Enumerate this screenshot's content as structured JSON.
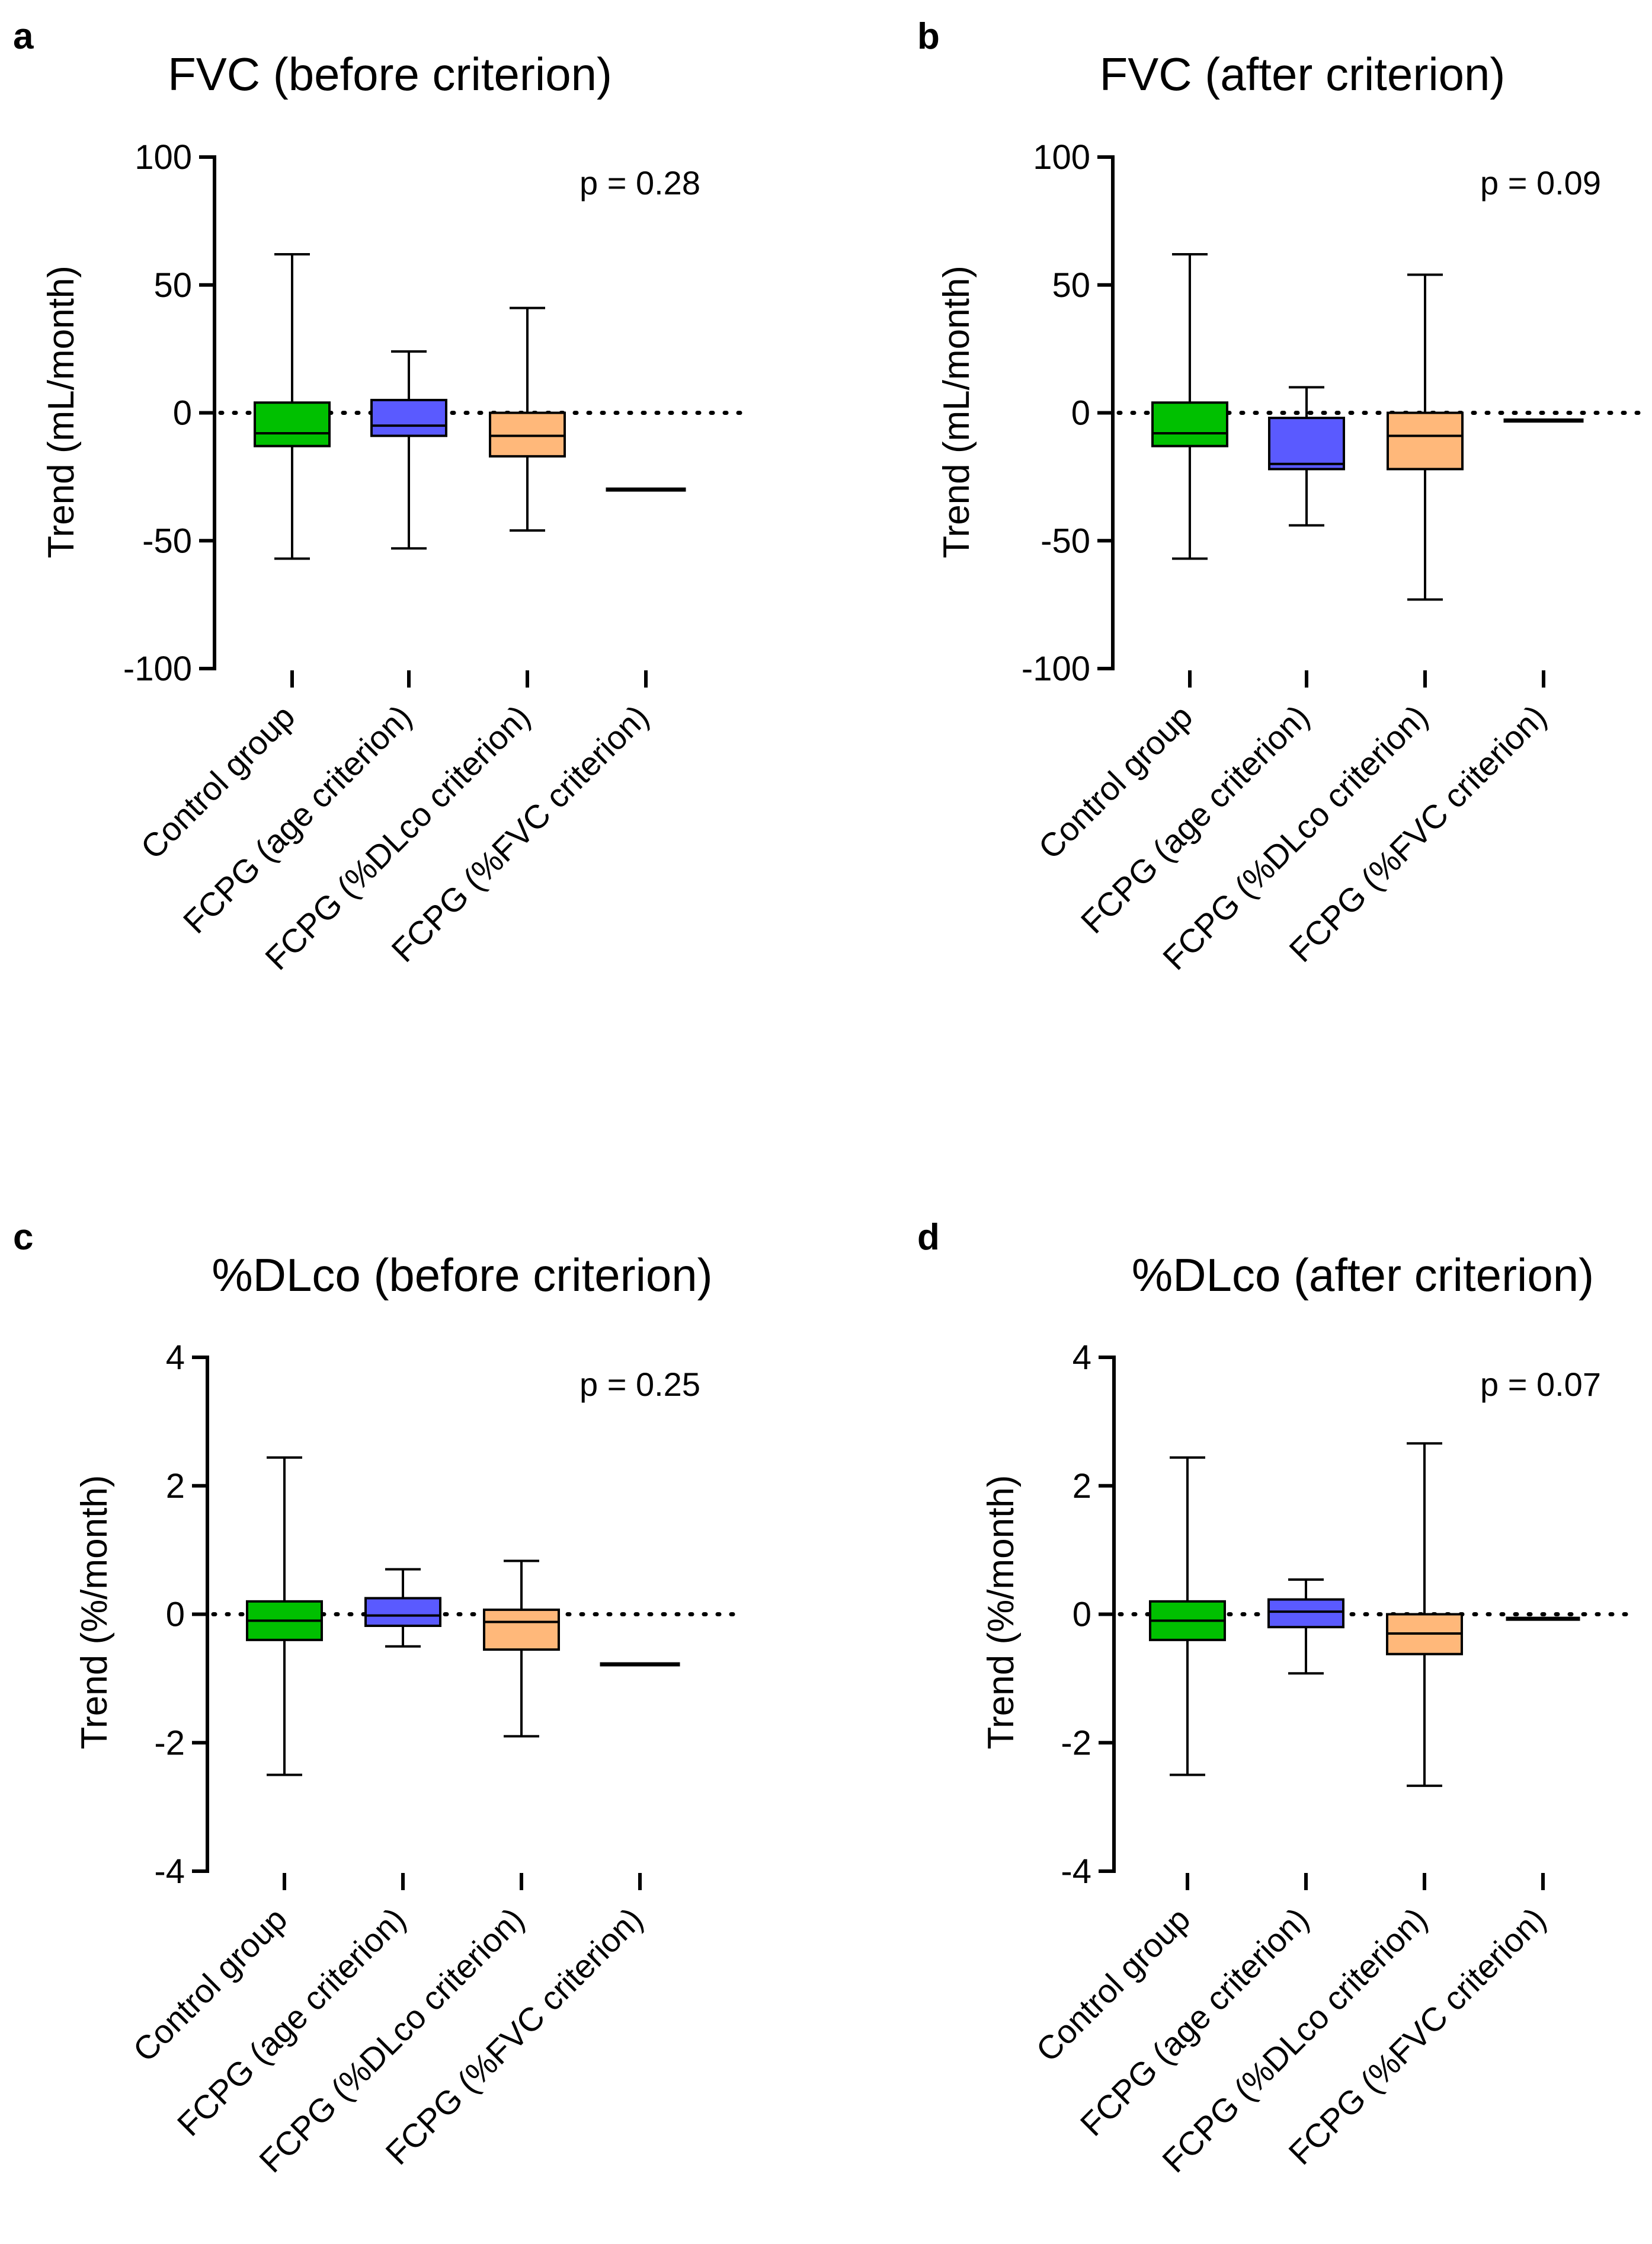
{
  "chart_data": [
    {
      "panel": "a",
      "type": "box",
      "title": "FVC (before criterion)",
      "ylabel": "Trend (mL/month)",
      "xlabel": "",
      "ylim": [
        -100,
        100
      ],
      "yticks": [
        100,
        50,
        0,
        -50,
        -100
      ],
      "reference_line": 0,
      "annotation": "p = 0.28",
      "categories": [
        "Control group",
        "FCPG (age criterion)",
        "FCPG (%DLco criterion)",
        "FCPG (%FVC criterion)"
      ],
      "colors": [
        "#00c000",
        "#5a5aff",
        "#ffb87a",
        "#000000"
      ],
      "boxes": [
        {
          "min": -57,
          "q1": -13,
          "median": -8,
          "q3": 4,
          "max": 62
        },
        {
          "min": -53,
          "q1": -9,
          "median": -5,
          "q3": 5,
          "max": 24
        },
        {
          "min": -46,
          "q1": -17,
          "median": -9,
          "q3": 0,
          "max": 41
        },
        {
          "min": -30,
          "q1": -30,
          "median": -30,
          "q3": -30,
          "max": -30
        }
      ]
    },
    {
      "panel": "b",
      "type": "box",
      "title": "FVC (after criterion)",
      "ylabel": "Trend (mL/month)",
      "xlabel": "",
      "ylim": [
        -100,
        100
      ],
      "yticks": [
        100,
        50,
        0,
        -50,
        -100
      ],
      "reference_line": 0,
      "annotation": "p = 0.09",
      "categories": [
        "Control group",
        "FCPG (age criterion)",
        "FCPG (%DLco criterion)",
        "FCPG (%FVC criterion)"
      ],
      "colors": [
        "#00c000",
        "#5a5aff",
        "#ffb87a",
        "#000000"
      ],
      "boxes": [
        {
          "min": -57,
          "q1": -13,
          "median": -8,
          "q3": 4,
          "max": 62
        },
        {
          "min": -44,
          "q1": -22,
          "median": -20,
          "q3": -2,
          "max": 10
        },
        {
          "min": -73,
          "q1": -22,
          "median": -9,
          "q3": 0,
          "max": 54
        },
        {
          "min": -3,
          "q1": -3,
          "median": -3,
          "q3": -3,
          "max": -3
        }
      ]
    },
    {
      "panel": "c",
      "type": "box",
      "title": "%DLco (before criterion)",
      "ylabel": "Trend (%/month)",
      "xlabel": "",
      "ylim": [
        -4,
        4
      ],
      "yticks": [
        4,
        2,
        0,
        -2,
        -4
      ],
      "reference_line": 0,
      "annotation": "p = 0.25",
      "categories": [
        "Control group",
        "FCPG (age criterion)",
        "FCPG (%DLco criterion)",
        "FCPG (%FVC criterion)"
      ],
      "colors": [
        "#00c000",
        "#5a5aff",
        "#ffb87a",
        "#000000"
      ],
      "boxes": [
        {
          "min": -2.5,
          "q1": -0.4,
          "median": -0.1,
          "q3": 0.2,
          "max": 2.44
        },
        {
          "min": -0.5,
          "q1": -0.18,
          "median": -0.02,
          "q3": 0.25,
          "max": 0.7
        },
        {
          "min": -1.9,
          "q1": -0.55,
          "median": -0.12,
          "q3": 0.07,
          "max": 0.83
        },
        {
          "min": -0.78,
          "q1": -0.78,
          "median": -0.78,
          "q3": -0.78,
          "max": -0.78
        }
      ]
    },
    {
      "panel": "d",
      "type": "box",
      "title": "%DLco (after criterion)",
      "ylabel": "Trend (%/month)",
      "xlabel": "",
      "ylim": [
        -4,
        4
      ],
      "yticks": [
        4,
        2,
        0,
        -2,
        -4
      ],
      "reference_line": 0,
      "annotation": "p = 0.07",
      "categories": [
        "Control group",
        "FCPG (age criterion)",
        "FCPG (%DLco criterion)",
        "FCPG (%FVC criterion)"
      ],
      "colors": [
        "#00c000",
        "#5a5aff",
        "#ffb87a",
        "#000000"
      ],
      "boxes": [
        {
          "min": -2.5,
          "q1": -0.4,
          "median": -0.1,
          "q3": 0.2,
          "max": 2.44
        },
        {
          "min": -0.92,
          "q1": -0.2,
          "median": 0.04,
          "q3": 0.23,
          "max": 0.54
        },
        {
          "min": -2.67,
          "q1": -0.62,
          "median": -0.3,
          "q3": 0.0,
          "max": 2.66
        },
        {
          "min": -0.07,
          "q1": -0.07,
          "median": -0.07,
          "q3": -0.07,
          "max": -0.07
        }
      ]
    }
  ]
}
